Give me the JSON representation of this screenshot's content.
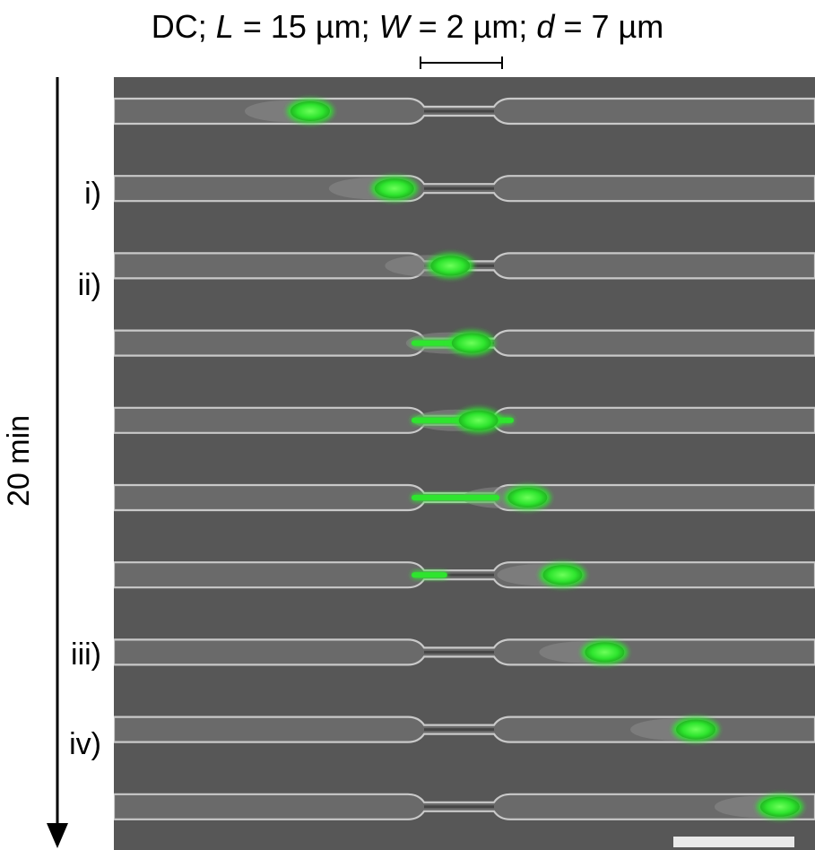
{
  "title": {
    "prefix": "DC; ",
    "L_symbol": "L",
    "L_value": " = 15 µm; ",
    "W_symbol": "W",
    "W_value": " = 2 µm; ",
    "d_symbol": "d",
    "d_value": " = 7 µm"
  },
  "time_axis": {
    "label": "20 min"
  },
  "frame_labels": [
    "i)",
    "ii)",
    "iii)",
    "iv)"
  ],
  "frames": [
    {
      "cell": 0.28,
      "stretch": 0.0,
      "label": ""
    },
    {
      "cell": 0.4,
      "stretch": 0.0,
      "label": "i)"
    },
    {
      "cell": 0.48,
      "stretch": 0.0,
      "label": "ii)"
    },
    {
      "cell": 0.51,
      "stretch": 0.4,
      "label": ""
    },
    {
      "cell": 0.52,
      "stretch": 1.0,
      "label": ""
    },
    {
      "cell": 0.59,
      "stretch": 0.85,
      "label": ""
    },
    {
      "cell": 0.64,
      "stretch": 0.3,
      "label": ""
    },
    {
      "cell": 0.7,
      "stretch": 0.0,
      "label": "iii)"
    },
    {
      "cell": 0.83,
      "stretch": 0.0,
      "label": "iv)"
    },
    {
      "cell": 0.95,
      "stretch": 0.0,
      "label": ""
    }
  ],
  "colors": {
    "background": "#575757",
    "channel_wall": "#c9c9c9",
    "channel_dark": "#2e2e2e",
    "cell_fluorescence": "#2ee52e",
    "scale_bar": "#e9e9e9"
  }
}
